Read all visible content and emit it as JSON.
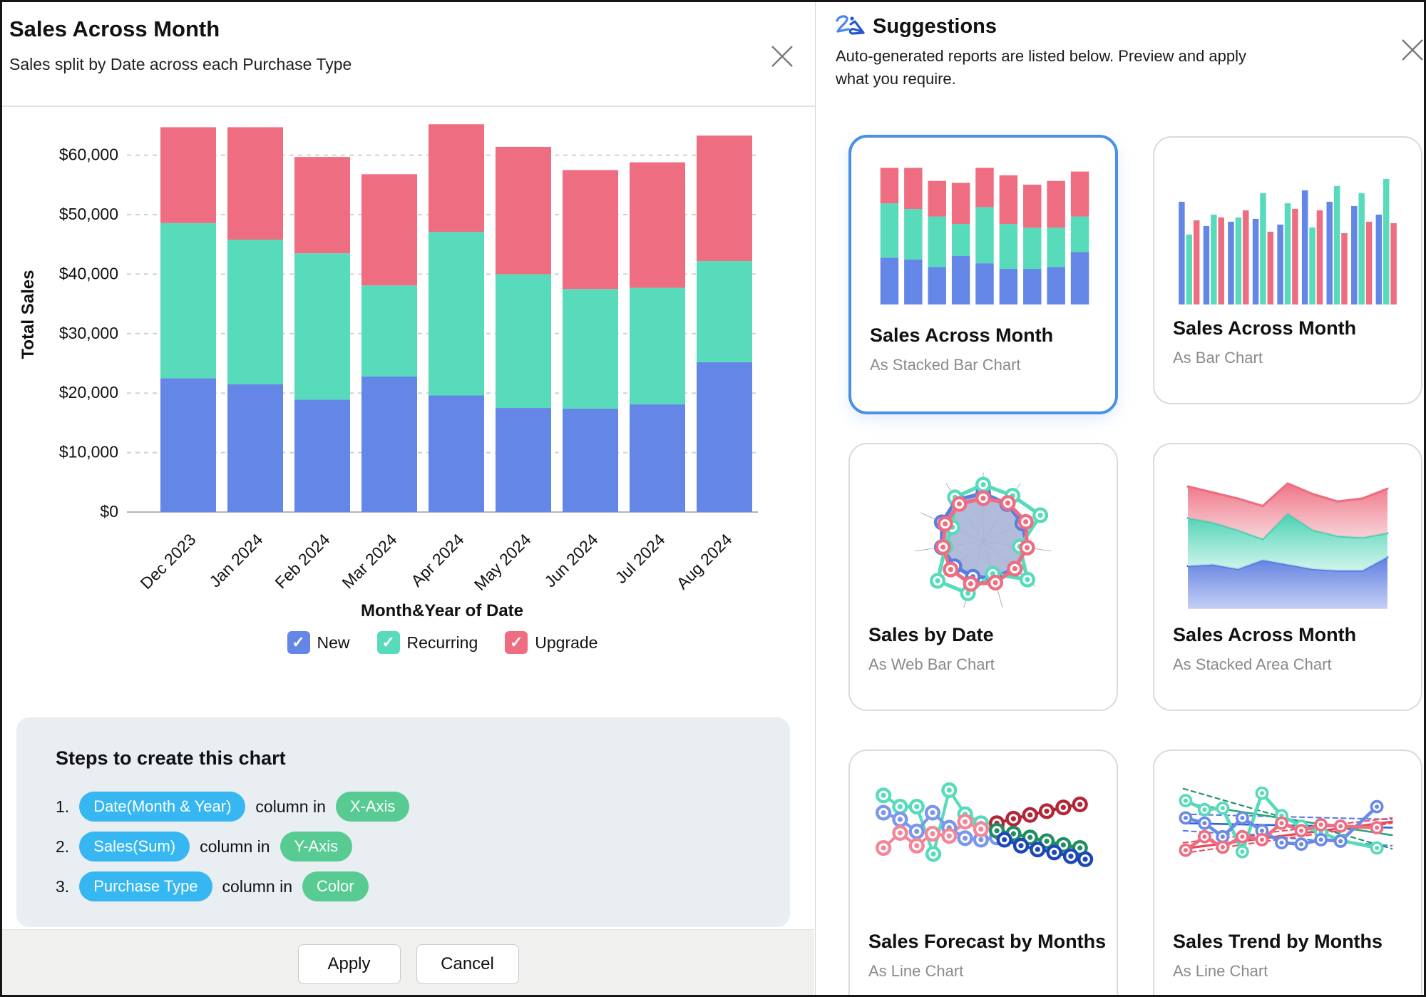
{
  "left_panel": {
    "title": "Sales Across Month",
    "subtitle": "Sales split by Date across each Purchase Type",
    "steps": {
      "heading": "Steps to create this chart",
      "items": [
        {
          "num": "1.",
          "field": "Date(Month & Year)",
          "mid": "column in",
          "target": "X-Axis"
        },
        {
          "num": "2.",
          "field": "Sales(Sum)",
          "mid": "column in",
          "target": "Y-Axis"
        },
        {
          "num": "3.",
          "field": "Purchase Type",
          "mid": "column in",
          "target": "Color"
        }
      ]
    },
    "buttons": {
      "apply": "Apply",
      "cancel": "Cancel"
    }
  },
  "right_panel": {
    "title": "Suggestions",
    "subtitle": "Auto-generated reports are listed below. Preview and apply what you require.",
    "cards": [
      {
        "title": "Sales Across Month",
        "subtitle": "As Stacked Bar Chart",
        "selected": true
      },
      {
        "title": "Sales Across Month",
        "subtitle": "As Bar Chart",
        "selected": false
      },
      {
        "title": "Sales by Date",
        "subtitle": "As Web Bar Chart",
        "selected": false
      },
      {
        "title": "Sales Across Month",
        "subtitle": "As Stacked Area Chart",
        "selected": false
      },
      {
        "title": "Sales Forecast by Months",
        "subtitle": "As Line Chart",
        "selected": false
      },
      {
        "title": "Sales Trend by Months",
        "subtitle": "As Line Chart",
        "selected": false
      }
    ]
  },
  "colors": {
    "new_blue": "#6486E6",
    "recurring_teal": "#57DBBA",
    "upgrade_red": "#EE6D80",
    "pill_blue": "#36B7F2",
    "pill_green": "#57CB92",
    "selected_border": "#4A8FE8",
    "grid": "#d2d2d2",
    "axis": "#b5b5b5"
  },
  "chart_data": [
    {
      "id": "main",
      "type": "bar",
      "stacked": true,
      "title": "Sales Across Month",
      "xlabel": "Month&Year of Date",
      "ylabel": "Total Sales",
      "categories": [
        "Dec 2023",
        "Jan 2024",
        "Feb 2024",
        "Mar 2024",
        "Apr 2024",
        "May 2024",
        "Jun 2024",
        "Jul 2024",
        "Aug 2024"
      ],
      "series": [
        {
          "name": "New",
          "color": "#6486E6",
          "checked": true,
          "values": [
            22500,
            21500,
            18900,
            22800,
            19600,
            17500,
            17400,
            18100,
            25200
          ]
        },
        {
          "name": "Recurring",
          "color": "#57DBBA",
          "checked": true,
          "values": [
            26100,
            24300,
            24600,
            15300,
            27500,
            22500,
            20100,
            19600,
            17000
          ]
        },
        {
          "name": "Upgrade",
          "color": "#EE6D80",
          "checked": true,
          "values": [
            16100,
            18900,
            16200,
            18700,
            18100,
            21400,
            20000,
            21100,
            21100
          ]
        }
      ],
      "totals": [
        64700,
        64700,
        59700,
        56800,
        65200,
        61400,
        57500,
        58800,
        63300
      ],
      "ylim": [
        0,
        66000
      ],
      "yticks": [
        0,
        10000,
        20000,
        30000,
        40000,
        50000,
        60000
      ],
      "ytick_prefix": "$",
      "grid": "dashed",
      "legend_position": "bottom"
    },
    {
      "id": "mini-stacked-bar",
      "type": "bar",
      "stacked": true,
      "series": [
        {
          "color": "#6486E6",
          "values": [
            25,
            24,
            20,
            26,
            22,
            19,
            19,
            20,
            28
          ]
        },
        {
          "color": "#57DBBA",
          "values": [
            29,
            27,
            27,
            17,
            30,
            24,
            22,
            21,
            19
          ]
        },
        {
          "color": "#EE6D80",
          "values": [
            19,
            22,
            19,
            22,
            21,
            26,
            23,
            25,
            24
          ]
        }
      ]
    },
    {
      "id": "mini-grouped-bar",
      "type": "bar",
      "stacked": false,
      "series": [
        {
          "color": "#6486E6",
          "values": [
            72,
            55,
            58,
            60,
            56,
            80,
            72,
            69,
            63
          ]
        },
        {
          "color": "#57DBBA",
          "values": [
            49,
            63,
            61,
            78,
            71,
            54,
            83,
            78,
            88
          ]
        },
        {
          "color": "#EE6D80",
          "values": [
            59,
            61,
            66,
            51,
            67,
            66,
            50,
            58,
            57
          ]
        }
      ]
    },
    {
      "id": "mini-radar",
      "type": "radar",
      "spokes": 11,
      "series": [
        {
          "color": "#5b7ce0",
          "radii": [
            0.78,
            0.72,
            0.7,
            0.72,
            0.68,
            0.62,
            0.6,
            0.62,
            0.68,
            0.74,
            0.8
          ]
        },
        {
          "color": "#57dbba",
          "radii": [
            0.92,
            0.88,
            1.02,
            0.6,
            0.95,
            0.55,
            0.88,
            0.98,
            0.62,
            0.55,
            0.85
          ]
        },
        {
          "color": "#ee6d80",
          "radii": [
            0.7,
            0.74,
            0.76,
            0.72,
            0.68,
            0.7,
            0.72,
            0.7,
            0.66,
            0.68,
            0.72
          ]
        }
      ],
      "web_fill": "#a8b4d6"
    },
    {
      "id": "mini-stacked-area",
      "type": "area",
      "base": 185,
      "layers": [
        {
          "color": "#5577e0",
          "light": "#b9c6f2",
          "tops": [
            128,
            126,
            132,
            120,
            126,
            132,
            134,
            134,
            116
          ]
        },
        {
          "color": "#3ecfae",
          "light": "#c8f3e8",
          "tops": [
            64,
            70,
            80,
            92,
            58,
            80,
            88,
            90,
            84
          ]
        },
        {
          "color": "#ee6d80",
          "light": "#f6ccd3",
          "tops": [
            22,
            30,
            38,
            48,
            18,
            32,
            42,
            38,
            25
          ]
        }
      ]
    },
    {
      "id": "mini-forecast-line",
      "type": "line",
      "series": [
        {
          "color": "#57dbba",
          "w": 4,
          "markers": true,
          "pts": [
            [
              18,
              25
            ],
            [
              40,
              40
            ],
            [
              62,
              40
            ],
            [
              84,
              103
            ],
            [
              105,
              18
            ],
            [
              126,
              50
            ],
            [
              147,
              62
            ]
          ]
        },
        {
          "color": "#7b97ec",
          "w": 4,
          "markers": true,
          "pts": [
            [
              18,
              48
            ],
            [
              40,
              57
            ],
            [
              62,
              73
            ],
            [
              83,
              48
            ],
            [
              105,
              68
            ],
            [
              126,
              82
            ],
            [
              147,
              84
            ],
            [
              168,
              81
            ]
          ]
        },
        {
          "color": "#f2879a",
          "w": 4,
          "markers": true,
          "pts": [
            [
              18,
              95
            ],
            [
              40,
              75
            ],
            [
              62,
              92
            ],
            [
              83,
              76
            ],
            [
              105,
              79
            ],
            [
              126,
              60
            ],
            [
              147,
              70
            ],
            [
              168,
              67
            ]
          ]
        },
        {
          "color": "#b22737",
          "w": 4,
          "markers": true,
          "pts": [
            [
              168,
              62
            ],
            [
              190,
              56
            ],
            [
              212,
              51
            ],
            [
              234,
              46
            ],
            [
              256,
              41
            ],
            [
              278,
              37
            ]
          ]
        },
        {
          "color": "#1f8f63",
          "w": 4,
          "markers": true,
          "pts": [
            [
              168,
              72
            ],
            [
              190,
              76
            ],
            [
              212,
              81
            ],
            [
              234,
              86
            ],
            [
              256,
              91
            ],
            [
              278,
              95
            ]
          ]
        },
        {
          "color": "#1c47b8",
          "w": 4,
          "markers": true,
          "pts": [
            [
              178,
              84
            ],
            [
              200,
              92
            ],
            [
              222,
              97
            ],
            [
              244,
              101
            ],
            [
              266,
              106
            ],
            [
              285,
              110
            ]
          ]
        }
      ]
    },
    {
      "id": "mini-trend-line",
      "type": "line",
      "series": [
        {
          "color": "#1f8f63",
          "w": 2,
          "dash": "6 5",
          "pts": [
            [
              12,
              16
            ],
            [
              288,
              96
            ]
          ]
        },
        {
          "color": "#5b7ce0",
          "w": 2,
          "dash": "6 5",
          "pts": [
            [
              12,
              50
            ],
            [
              288,
              57
            ]
          ]
        },
        {
          "color": "#5b7ce0",
          "w": 2,
          "dash": "6 5",
          "pts": [
            [
              12,
              72
            ],
            [
              288,
              92
            ]
          ]
        },
        {
          "color": "#e64b60",
          "w": 2,
          "dash": "6 5",
          "pts": [
            [
              12,
              88
            ],
            [
              288,
              55
            ]
          ]
        },
        {
          "color": "#e64b60",
          "w": 2,
          "dash": "6 5",
          "pts": [
            [
              12,
              102
            ],
            [
              288,
              62
            ]
          ]
        },
        {
          "color": "#2aa87c",
          "w": 2.5,
          "pts": [
            [
              12,
              35
            ],
            [
              288,
              78
            ]
          ]
        },
        {
          "color": "#2f62d8",
          "w": 2.5,
          "pts": [
            [
              12,
              62
            ],
            [
              288,
              68
            ]
          ]
        },
        {
          "color": "#e6475c",
          "w": 3,
          "pts": [
            [
              12,
              96
            ],
            [
              288,
              60
            ]
          ]
        },
        {
          "color": "#57dbba",
          "w": 4.5,
          "markers": true,
          "pts": [
            [
              15,
              32
            ],
            [
              40,
              44
            ],
            [
              64,
              42
            ],
            [
              90,
              100
            ],
            [
              116,
              22
            ],
            [
              142,
              52
            ],
            [
              168,
              66
            ],
            [
              194,
              74
            ],
            [
              220,
              85
            ],
            [
              268,
              95
            ]
          ]
        },
        {
          "color": "#6b8ae8",
          "w": 4.5,
          "markers": true,
          "pts": [
            [
              15,
              55
            ],
            [
              40,
              62
            ],
            [
              64,
              80
            ],
            [
              90,
              55
            ],
            [
              116,
              72
            ],
            [
              142,
              88
            ],
            [
              168,
              90
            ],
            [
              194,
              84
            ],
            [
              220,
              86
            ],
            [
              268,
              40
            ]
          ]
        },
        {
          "color": "#ee6d80",
          "w": 4.5,
          "markers": true,
          "pts": [
            [
              15,
              98
            ],
            [
              40,
              80
            ],
            [
              64,
              94
            ],
            [
              90,
              80
            ],
            [
              116,
              84
            ],
            [
              142,
              62
            ],
            [
              168,
              72
            ],
            [
              194,
              64
            ],
            [
              220,
              66
            ],
            [
              268,
              68
            ]
          ]
        }
      ]
    }
  ]
}
